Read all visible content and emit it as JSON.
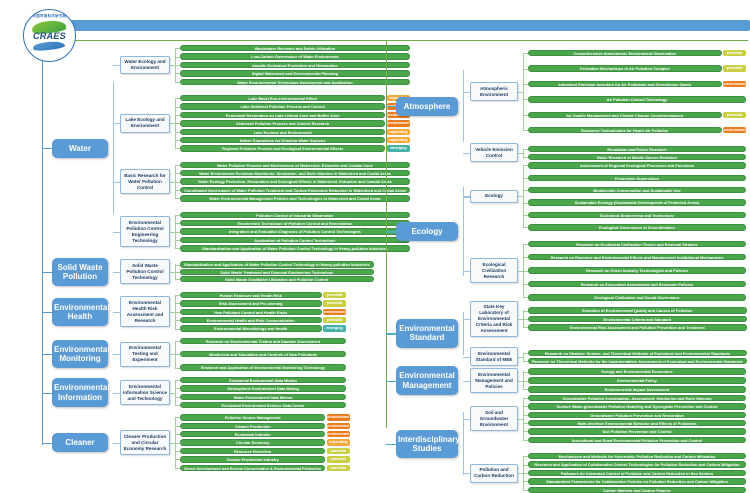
{
  "logo": {
    "acronym": "CRAES",
    "chinese_name": "中国环境科学研究院"
  },
  "colors": {
    "header_bar": "#5B9BD5",
    "header_line": "#70AD47",
    "category_box": "#5B9BD5",
    "research_bar": "#4CA64C",
    "tag_predominant": "#E87D1E",
    "tag_expanding": "#F2A73B",
    "tag_potential": "#C9CE44",
    "tag_emerging": "#45B0A8"
  },
  "left_sections": [
    {
      "title": "Water",
      "groups": [
        {
          "label": "Water Ecology and Environment",
          "items": [
            {
              "text": "Wastewater Recovery and Safety Utilization"
            },
            {
              "text": "Low-Carbon Governance of Water Environment"
            },
            {
              "text": "Aquatic Ecological Protection and Restoration"
            },
            {
              "text": "Digital Watershed and Environmental Planning"
            },
            {
              "text": "Water Environmental Technology Assessment and Application"
            }
          ]
        },
        {
          "label": "Lake Ecology and Environment",
          "items": [
            {
              "text": "Lake Basin Eco-environmental Effect",
              "tag": "expanding"
            },
            {
              "text": "Lake Sediment Pollution Process and Control",
              "tag": "predominant"
            },
            {
              "text": "Ecological Restoration on Lake Littoral Zone and Buffer Zone",
              "tag": "predominant"
            },
            {
              "text": "Sediment Pollution Process and Control Research",
              "tag": "predominant"
            },
            {
              "text": "Lake Ecology and Environment",
              "tag": "expanding"
            },
            {
              "text": "Safety Guarantees for Drinking Water Sources",
              "tag": "expanding"
            },
            {
              "text": "Regional Pollution Process and Ecological Environmental Effects",
              "tag": "emerging"
            }
          ]
        },
        {
          "label": "Basic Research for Water Pollution Control",
          "items": [
            {
              "text": "Water Pollution Process and Mechanisms of Watershed, Estuaries and Coastal Zone"
            },
            {
              "text": "Water Environment Evolution Monitoring, Simulation, and Early Warning in Watershed and Costal Areas"
            },
            {
              "text": "Water Ecology Protection, Restoration and Ecological Effects in Watershed, Estuarine and Coastal Areas"
            },
            {
              "text": "Coordinated Governance of Water Pollution Treatment and Carbon Emissions Reduction in Watershed and Costal Areas"
            },
            {
              "text": "Water Environmental Management Policies and Technologies in Watershed and Costal Areas"
            }
          ]
        },
        {
          "label": "Environmental Pollution Control Engineering Technology",
          "items": [
            {
              "text": "Pollution Control of Industrial Wastewater"
            },
            {
              "text": "Engineering Technology of Pollution Control and Remediation"
            },
            {
              "text": "Integration and Evaluation Diagnosis of Pollution Control Technologies"
            },
            {
              "text": "Application of Pollution Control Technology"
            },
            {
              "text": "Standardization and Application of Water Pollution Control Technology in Heavy-pollution Industries"
            }
          ]
        }
      ]
    },
    {
      "title": "Solid Waste Pollution",
      "groups": [
        {
          "label": "Solid Waste Pollution Control Technology",
          "items": [
            {
              "text": "Standardization and Application of Water Pollution Control Technology in Heavy-pollution Industries"
            },
            {
              "text": "Solid Waste Treatment and Disposal Engineering Technology"
            },
            {
              "text": "Solid Waste Qualitative Utilization and Pollution Control"
            }
          ]
        }
      ]
    },
    {
      "title": "Environmental Health",
      "groups": [
        {
          "label": "Environmental Health Risk Assessment and Research",
          "items": [
            {
              "text": "Human Exposure and Health Risk",
              "tag": "potential"
            },
            {
              "text": "Risk Assessment and Pre-warning",
              "tag": "potential"
            },
            {
              "text": "New Pollutant Control and Health Risks",
              "tag": "predominant"
            },
            {
              "text": "Environmental Health and Risk Communication",
              "tag": "potential"
            },
            {
              "text": "Environmental Microbiology and Health",
              "tag": "emerging"
            }
          ]
        }
      ]
    },
    {
      "title": "Environmental Monitoring",
      "groups": [
        {
          "label": "Environmental Testing and Experiment",
          "items": [
            {
              "text": "Research on Environmental Testing and Damage Assessment"
            },
            {
              "text": "Monitoring and Simulation and Controls of New Pollutants"
            },
            {
              "text": "Research and Application of Environmental Monitoring Technology"
            }
          ]
        }
      ]
    },
    {
      "title": "Environmental Information",
      "groups": [
        {
          "label": "Environmental Information Science and Technology",
          "items": [
            {
              "text": "Ecological Environment Data Mining"
            },
            {
              "text": "Atmospheric Environment Data Mining"
            },
            {
              "text": "Water Environment Data Mining"
            },
            {
              "text": "Ecological Environment Science Data Center"
            }
          ]
        }
      ]
    },
    {
      "title": "Cleaner",
      "groups": [
        {
          "label": "Cleaner Production and Circular Economy Research",
          "items": [
            {
              "text": "Pollution Source Management",
              "tag": "predominant"
            },
            {
              "text": "Cleaner Production",
              "tag": "predominant"
            },
            {
              "text": "Ecological Industry",
              "tag": "predominant"
            },
            {
              "text": "Circular Economy",
              "tag": "expanding"
            },
            {
              "text": "Resource Recycling",
              "tag": "potential"
            },
            {
              "text": "Cleaner Production Industry",
              "tag": "potential"
            },
            {
              "text": "Green Development and Energy Conservation & Environmental Protection",
              "tag": "potential"
            }
          ]
        }
      ]
    }
  ],
  "right_sections": [
    {
      "title": "Atmosphere",
      "groups": [
        {
          "label": "Atmospheric Environment",
          "items": [
            {
              "text": "Comprehensive Atmospheric Environment Observation",
              "tag": "potential"
            },
            {
              "text": "Formation Mechanisms of Air Pollution Complex",
              "tag": "potential"
            },
            {
              "text": "Integrated Emission Inventory for Air Pollutants and Greenhouse Gases",
              "tag": "predominant"
            },
            {
              "text": "Air Pollution Control Technology"
            },
            {
              "text": "Air Quality Management and Climate Change Countermeasures",
              "tag": "potential"
            },
            {
              "text": "Response Technologies for Heavy Air Pollution",
              "tag": "predominant"
            }
          ]
        },
        {
          "label": "Vehicle Emission Control",
          "items": [
            {
              "text": "Regulation and Policy Research"
            },
            {
              "text": "Basic Research of Mobile Source Emission"
            }
          ]
        }
      ]
    },
    {
      "title": "Ecology",
      "groups": [
        {
          "label": "Ecology",
          "items": [
            {
              "text": "Assessment of Regional Ecological Processes and Functions"
            },
            {
              "text": "Ecosystem Supervision"
            },
            {
              "text": "Biodiversity Conservation and Sustainable Use"
            },
            {
              "text": "Sustainable Ecology (Sustainable Development of Protected Areas)"
            },
            {
              "text": "Ecological Engineering and Technology"
            },
            {
              "text": "Ecological Governance of Desertification"
            }
          ]
        },
        {
          "label": "Ecological Civilization Research",
          "items": [
            {
              "text": "Research on Ecological Civilization Theory and Regional Strategy"
            },
            {
              "text": "Research on Resource and Environmental Effects and Management Institutional Mechanisms"
            },
            {
              "text": "Research on Green Industry Technologies and Policies"
            },
            {
              "text": "Research on Ecosystem Assessment and Economic Policies"
            },
            {
              "text": "Ecological Civilization and Social Governance"
            }
          ]
        }
      ]
    },
    {
      "title": "Environmental Standard",
      "groups": [
        {
          "label": "State Key Laboratory of Environmental Criteria and Risk Assessment",
          "items": [
            {
              "text": "Evolution of Environmental Quality and Causes of Pollution"
            },
            {
              "text": "Environmental Criteria and Standard"
            },
            {
              "text": "Environmental Risk Assessment and Pollution Prevention and Treatment"
            }
          ]
        },
        {
          "label": "Environmental Standard of MEE",
          "items": [
            {
              "text": "Research on Strategy, System, and Theoretical Methods of Ecological and Environmental Standards"
            },
            {
              "text": "Research on Theoretical Methods for the Implementation Assessment of Ecological and Environmental Standards"
            }
          ]
        }
      ]
    },
    {
      "title": "Environmental Management",
      "groups": [
        {
          "label": "Environmental Management and Policies",
          "items": [
            {
              "text": "Energy and Environmental Economics"
            },
            {
              "text": "Environmental Policy"
            },
            {
              "text": "Environmental Impact Assessment"
            }
          ]
        }
      ]
    },
    {
      "title": "Interdisciplinary Studies",
      "groups": [
        {
          "label": "Soil and Groundwater Environment",
          "items": [
            {
              "text": "Groundwater Pollution Investigation, Assessment, Monitoring and Early Warning"
            },
            {
              "text": "Surface Water-groundwater Pollution Modeling and Synergistic Prevention and Control"
            },
            {
              "text": "Groundwater Pollution Prevention and Restoration"
            },
            {
              "text": "Multi-interface Environmental Behavior and Effects of Pollutants"
            },
            {
              "text": "Soil Pollution Prevention and Control"
            },
            {
              "text": "Agricultural and Rural Environmental Pollution Prevention and Control"
            }
          ]
        },
        {
          "label": "Pollution and Carbon Reduction",
          "items": [
            {
              "text": "Mechanisms and Methods for Synergistic Pollution Reduction and Carbon Mitigation"
            },
            {
              "text": "Research and Application of Collaborative Control Technologies for Pollution Reduction and Carbon Mitigation"
            },
            {
              "text": "Pathways for Integrated Control of Pollution and Carbon Reduction in Key Sectors"
            },
            {
              "text": "Standardized Frameworks for Collaborative Policies on Pollution Reduction and Carbon Mitigation"
            },
            {
              "text": "Carbon Markets and Carbon Finance"
            }
          ]
        }
      ]
    }
  ]
}
